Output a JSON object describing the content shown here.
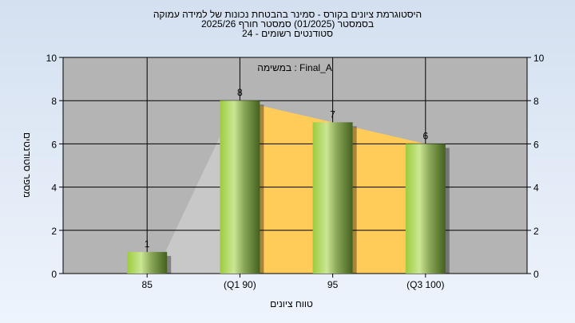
{
  "chart_data": {
    "type": "bar",
    "title_lines": [
      "היסטוגרמת ציונים בקורס - סמינר בהבטחת נכונות של למידה עמוקה",
      "בסמסטר  (01/2025)  סמסטר חורף 2025/26",
      "סטודנטים רשומים - 24"
    ],
    "legend": "במשימה : Final_A",
    "xlabel": "טווח ציונים",
    "ylabel": "מספר סטודנטים",
    "categories": [
      "85",
      "(Q1 90)",
      "95",
      "(Q3 100)"
    ],
    "values": [
      1,
      8,
      7,
      6
    ],
    "ylim": [
      0,
      10
    ],
    "yticks": [
      0,
      2,
      4,
      6,
      8,
      10
    ],
    "grid": true,
    "colors": {
      "plot_bg": "#b4b4b4",
      "bar": "#a6d04a",
      "area_yellow": "#ffcc5a",
      "area_gray": "#c8c8c8"
    }
  }
}
